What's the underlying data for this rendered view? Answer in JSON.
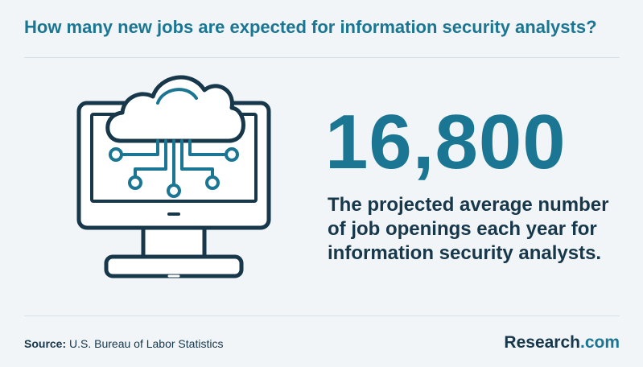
{
  "header": {
    "title": "How many new jobs are expected for information security analysts?"
  },
  "stat": {
    "value": "16,800",
    "description": "The projected average number of job openings each year for information security analysts."
  },
  "illustration": {
    "icon": "cloud-computer-network-icon",
    "colors": {
      "stroke": "#17374a",
      "accent": "#1a7692",
      "fill": "#ffffff"
    }
  },
  "footer": {
    "source_label": "Source:",
    "source_text": "U.S. Bureau of Labor Statistics",
    "logo_brand": "Research",
    "logo_tld": ".com"
  },
  "colors": {
    "background": "#f1f5f8",
    "accent": "#1a7692",
    "text": "#17374a",
    "divider": "#d9e1e6"
  }
}
